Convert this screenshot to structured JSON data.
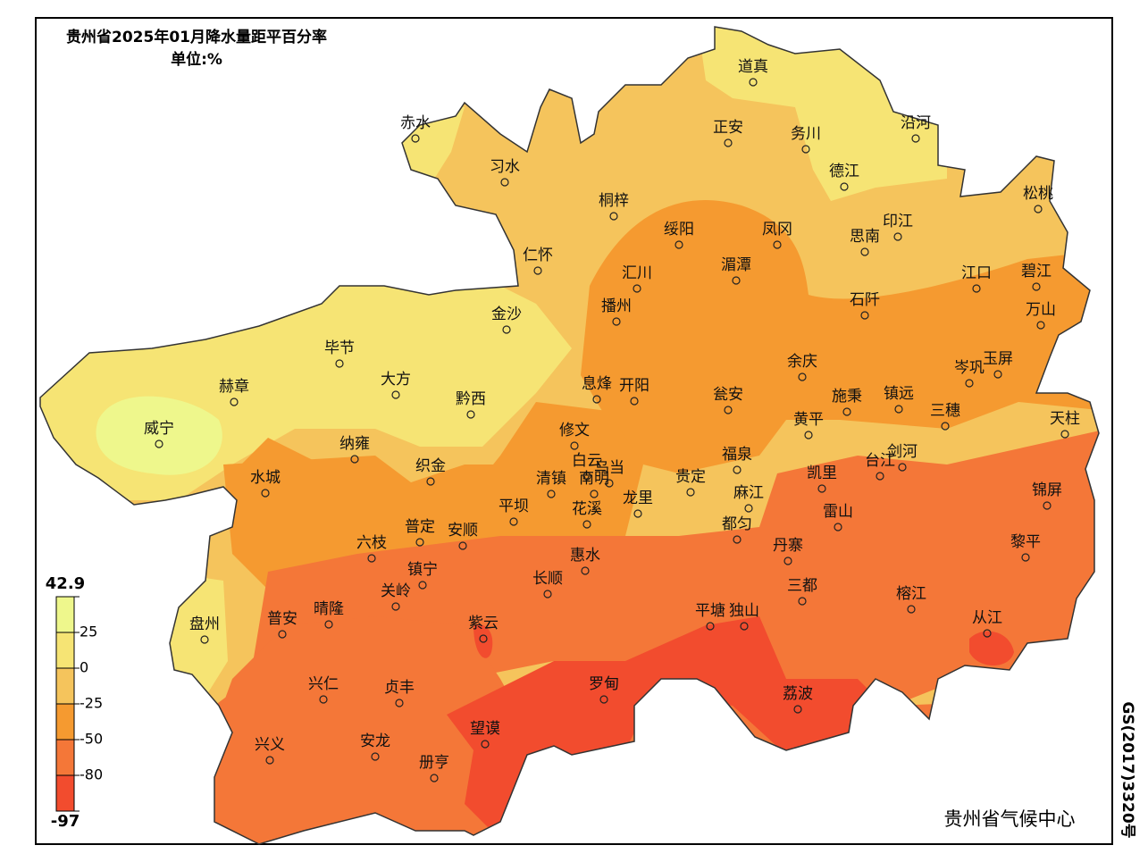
{
  "title": "贵州省2025年01月降水量距平百分率",
  "unit": "单位:%",
  "legend": {
    "ticks": [
      42.9,
      25,
      0,
      -25,
      -50,
      -80,
      -97
    ],
    "colors": [
      "#eef78c",
      "#f6e474",
      "#f5c45c",
      "#f59a30",
      "#f47738",
      "#f24c2e"
    ]
  },
  "places": [
    "道真",
    "赤水",
    "正安",
    "务川",
    "沿河",
    "习水",
    "德江",
    "松桃",
    "桐梓",
    "绥阳",
    "凤冈",
    "印江",
    "思南",
    "仁怀",
    "汇川",
    "湄潭",
    "江口",
    "碧江",
    "石阡",
    "播州",
    "金沙",
    "万山",
    "毕节",
    "余庆",
    "岑巩",
    "玉屏",
    "大方",
    "息烽",
    "开阳",
    "瓮安",
    "施秉",
    "镇远",
    "赫章",
    "黔西",
    "三穗",
    "天柱",
    "威宁",
    "黄平",
    "修文",
    "纳雍",
    "剑河",
    "台江",
    "福泉",
    "白云",
    "乌当",
    "织金",
    "凯里",
    "水城",
    "清镇",
    "南明",
    "贵定",
    "锦屏",
    "龙里",
    "麻江",
    "平坝",
    "花溪",
    "都匀",
    "雷山",
    "普定",
    "安顺",
    "六枝",
    "丹寨",
    "黎平",
    "惠水",
    "长顺",
    "镇宁",
    "关岭",
    "三都",
    "榕江",
    "晴隆",
    "普安",
    "平塘",
    "独山",
    "盘州",
    "紫云",
    "从江",
    "兴仁",
    "贞丰",
    "罗甸",
    "荔波",
    "望谟",
    "兴义",
    "安龙",
    "册亨"
  ],
  "agency": "贵州省气候中心",
  "map_number": "GS(2017)3320号"
}
